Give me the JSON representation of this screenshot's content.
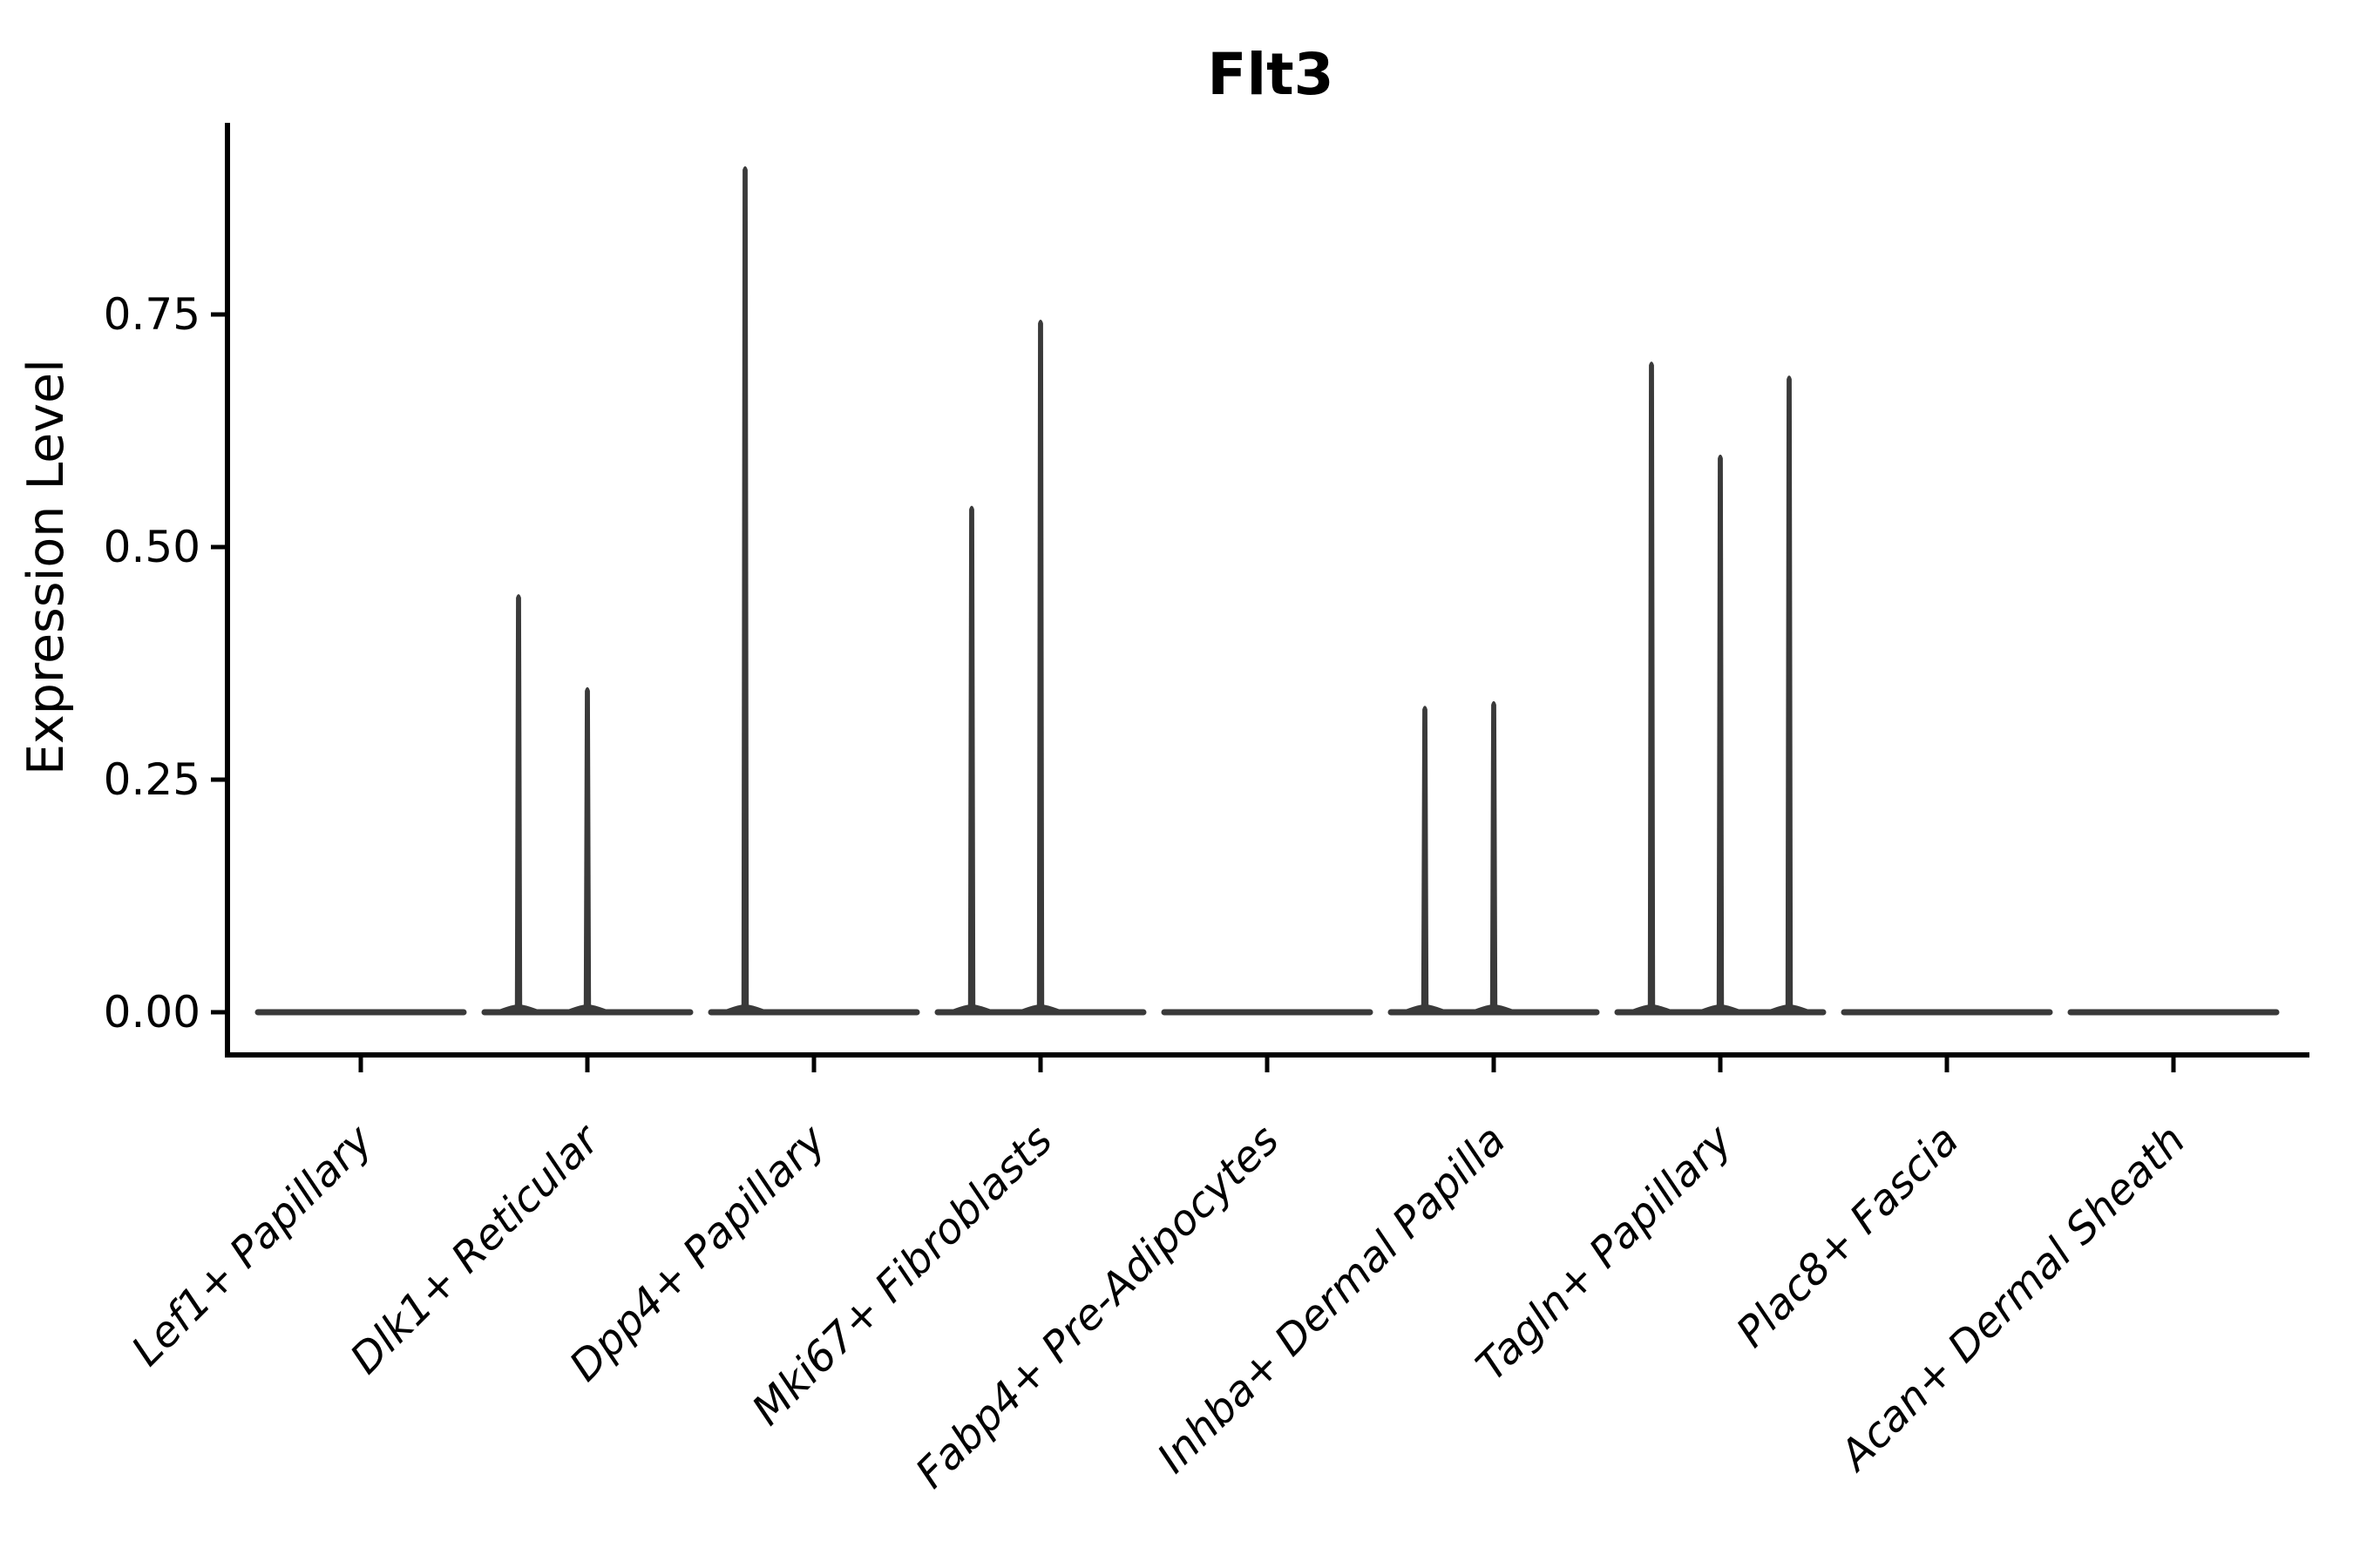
{
  "figure": {
    "background": "#ffffff"
  },
  "chart_data": {
    "type": "violin",
    "title": "Flt3",
    "xlabel": "",
    "ylabel": "Expression Level",
    "ylim": [
      0,
      0.956
    ],
    "grid": false,
    "legend": "none",
    "yticks": [
      {
        "value": 0.0,
        "label": "0.00"
      },
      {
        "value": 0.25,
        "label": "0.25"
      },
      {
        "value": 0.5,
        "label": "0.50"
      },
      {
        "value": 0.75,
        "label": "0.75"
      }
    ],
    "categories": [
      "Lef1+ Papillary",
      "Dlk1+ Reticular",
      "Dpp4+ Papillary",
      "Mki67+ Fibroblasts",
      "Fabp4+ Pre-Adipocytes",
      "Inhba+ Dermal Papilla",
      "Tagln+ Papillary",
      "Plac8+ Fascia",
      "Acan+ Dermal Sheath"
    ],
    "groups": [
      {
        "category": "Lef1+ Papillary",
        "baseline": 0,
        "spikes": []
      },
      {
        "category": "Dlk1+ Reticular",
        "baseline": 0,
        "spikes": [
          {
            "slot": -1,
            "value": 0.45
          },
          {
            "slot": 0,
            "value": 0.35
          }
        ]
      },
      {
        "category": "Dpp4+ Papillary",
        "baseline": 0,
        "spikes": [
          {
            "slot": -1,
            "value": 0.91
          }
        ]
      },
      {
        "category": "Mki67+ Fibroblasts",
        "baseline": 0,
        "spikes": [
          {
            "slot": -1,
            "value": 0.545
          },
          {
            "slot": 0,
            "value": 0.745
          }
        ]
      },
      {
        "category": "Fabp4+ Pre-Adipocytes",
        "baseline": 0,
        "spikes": []
      },
      {
        "category": "Inhba+ Dermal Papilla",
        "baseline": 0,
        "spikes": [
          {
            "slot": -1,
            "value": 0.33
          },
          {
            "slot": 0,
            "value": 0.335
          }
        ]
      },
      {
        "category": "Tagln+ Papillary",
        "baseline": 0,
        "spikes": [
          {
            "slot": -1,
            "value": 0.7
          },
          {
            "slot": 0,
            "value": 0.6
          },
          {
            "slot": 1,
            "value": 0.685
          }
        ]
      },
      {
        "category": "Plac8+ Fascia",
        "baseline": 0,
        "spikes": []
      },
      {
        "category": "Acan+ Dermal Sheath",
        "baseline": 0,
        "spikes": []
      }
    ],
    "colors": {
      "violin_line": "#3a3a3a",
      "axis": "#000000",
      "text": "#000000",
      "background": "#ffffff"
    }
  }
}
